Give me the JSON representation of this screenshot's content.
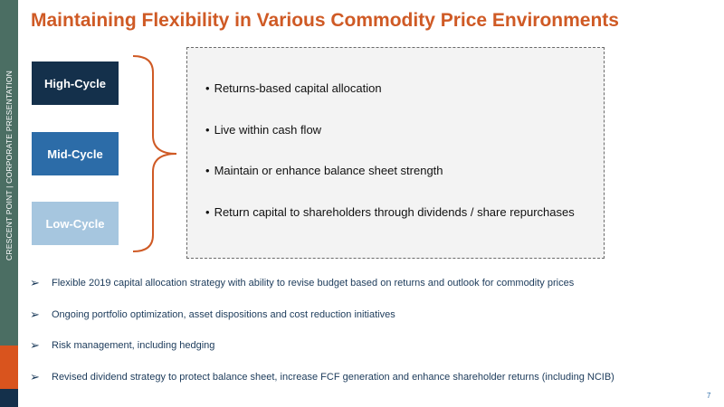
{
  "sidebar": {
    "text": "CRESCENT POINT   |   CORPORATE PRESENTATION",
    "color": "#4b6e63",
    "accent_color": "#d9541e"
  },
  "title": "Maintaining Flexibility in Various Commodity Price Environments",
  "cycles": [
    {
      "label": "High-Cycle",
      "color": "#14304b"
    },
    {
      "label": "Mid-Cycle",
      "color": "#2c6ca8"
    },
    {
      "label": "Low-Cycle",
      "color": "#a6c6df"
    }
  ],
  "principles": [
    "Returns-based capital allocation",
    "Live within cash flow",
    "Maintain or enhance balance sheet strength",
    "Return capital to shareholders through dividends / share repurchases"
  ],
  "highlights": [
    "Flexible 2019 capital allocation strategy with ability to revise budget based on returns and outlook for commodity prices",
    "Ongoing portfolio optimization, asset dispositions and cost reduction initiatives",
    "Risk management, including hedging",
    "Revised dividend strategy to protect balance sheet, increase FCF generation and enhance shareholder returns (including NCIB)"
  ],
  "arrow_icon": "➢",
  "page_number": "7"
}
